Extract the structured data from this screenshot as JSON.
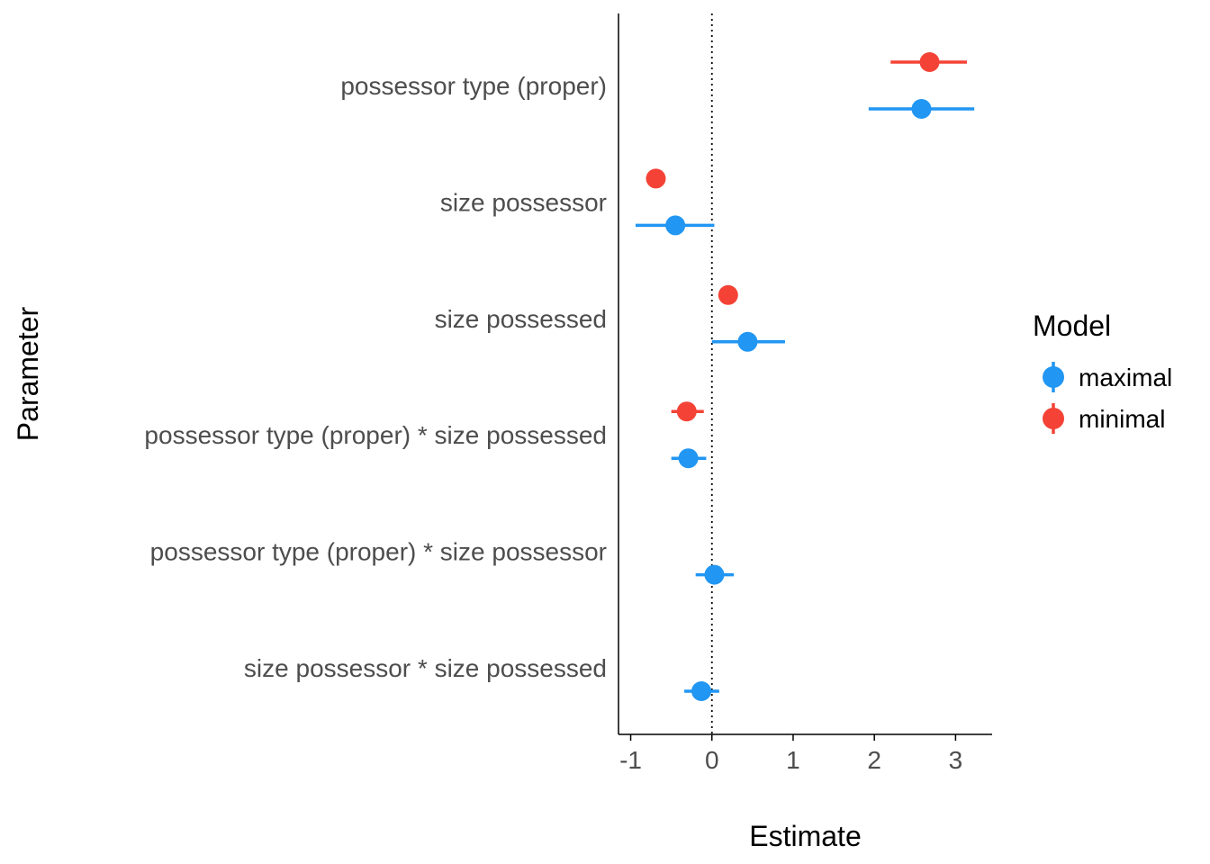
{
  "chart_data": {
    "type": "scatter",
    "subtype": "coefficient-plot",
    "xlabel": "Estimate",
    "ylabel": "Parameter",
    "xlim": [
      -1.15,
      3.45
    ],
    "xticks": [
      -1,
      0,
      1,
      2,
      3
    ],
    "xtick_labels": [
      "-1",
      "0",
      "1",
      "2",
      "3"
    ],
    "reference_line": {
      "x": 0,
      "style": "dotted"
    },
    "grid": false,
    "legend": {
      "title": "Model",
      "position": "right"
    },
    "parameters": [
      "possessor type (proper)",
      "size possessor",
      "size possessed",
      "possessor type (proper) * size possessed",
      "possessor type (proper) * size possessor",
      "size possessor * size possessed"
    ],
    "series": [
      {
        "name": "maximal",
        "color": "#2196F3",
        "points": [
          {
            "parameter": "possessor type (proper)",
            "estimate": 2.58,
            "lower": 1.93,
            "upper": 3.23
          },
          {
            "parameter": "size possessor",
            "estimate": -0.45,
            "lower": -0.94,
            "upper": 0.03
          },
          {
            "parameter": "size possessed",
            "estimate": 0.44,
            "lower": 0.0,
            "upper": 0.9
          },
          {
            "parameter": "possessor type (proper) * size possessed",
            "estimate": -0.29,
            "lower": -0.5,
            "upper": -0.07
          },
          {
            "parameter": "possessor type (proper) * size possessor",
            "estimate": 0.03,
            "lower": -0.2,
            "upper": 0.27
          },
          {
            "parameter": "size possessor * size possessed",
            "estimate": -0.13,
            "lower": -0.34,
            "upper": 0.09
          }
        ]
      },
      {
        "name": "minimal",
        "color": "#F44336",
        "points": [
          {
            "parameter": "possessor type (proper)",
            "estimate": 2.68,
            "lower": 2.2,
            "upper": 3.14
          },
          {
            "parameter": "size possessor",
            "estimate": -0.69,
            "lower": -0.8,
            "upper": -0.58
          },
          {
            "parameter": "size possessed",
            "estimate": 0.2,
            "lower": 0.09,
            "upper": 0.31
          },
          {
            "parameter": "possessor type (proper) * size possessed",
            "estimate": -0.31,
            "lower": -0.5,
            "upper": -0.1
          }
        ]
      }
    ]
  }
}
